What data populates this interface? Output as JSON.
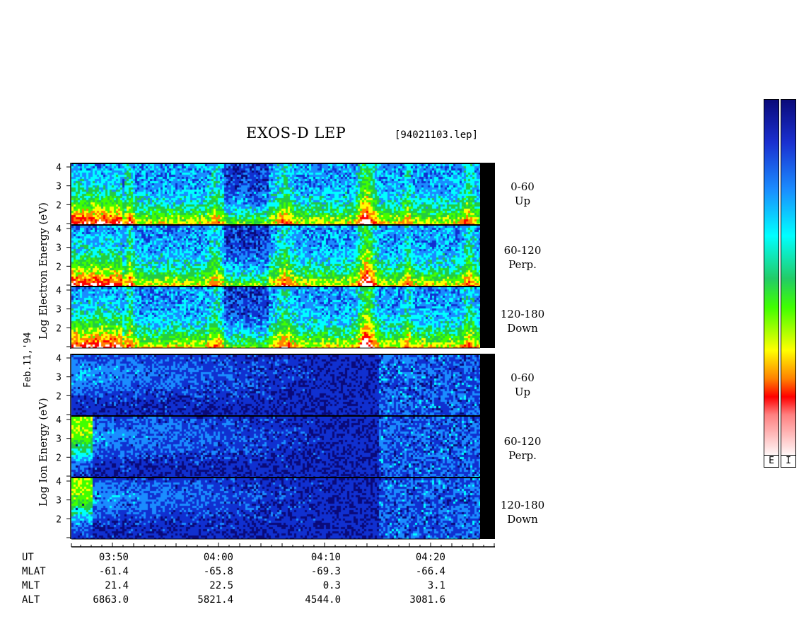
{
  "title": "EXOS-D LEP",
  "filename": "[94021103.lep]",
  "date_label": "Feb.11,'94",
  "electron_axis_label": "Log Electron Energy (eV)",
  "ion_axis_label": "Log Ion Energy (eV)",
  "pitch_labels": [
    {
      "range": "0-60",
      "name": "Up"
    },
    {
      "range": "60-120",
      "name": "Perp."
    },
    {
      "range": "120-180",
      "name": "Down"
    },
    {
      "range": "0-60",
      "name": "Up"
    },
    {
      "range": "60-120",
      "name": "Perp."
    },
    {
      "range": "120-180",
      "name": "Down"
    }
  ],
  "x_axis_rows": [
    {
      "label": "UT",
      "values": [
        "03:50",
        "04:00",
        "04:10",
        "04:20"
      ]
    },
    {
      "label": "MLAT",
      "values": [
        "-61.4",
        "-65.8",
        "-69.3",
        "-66.4"
      ]
    },
    {
      "label": "MLT",
      "values": [
        "21.4",
        "22.5",
        "0.3",
        "3.1"
      ]
    },
    {
      "label": "ALT",
      "values": [
        "6863.0",
        "5821.4",
        "4544.0",
        "3081.6"
      ]
    }
  ],
  "colorbar_labels": [
    "E",
    "I"
  ],
  "chart_data": {
    "type": "heatmap",
    "title": "EXOS-D LEP",
    "xlabel": "UT",
    "x_ticks": [
      "03:50",
      "04:00",
      "04:10",
      "04:20"
    ],
    "y_ticks": [
      "2",
      "3",
      "4"
    ],
    "panels": [
      {
        "species": "Electron",
        "pitch": "0-60",
        "direction": "Up"
      },
      {
        "species": "Electron",
        "pitch": "60-120",
        "direction": "Perp."
      },
      {
        "species": "Electron",
        "pitch": "120-180",
        "direction": "Down"
      },
      {
        "species": "Ion",
        "pitch": "0-60",
        "direction": "Up"
      },
      {
        "species": "Ion",
        "pitch": "60-120",
        "direction": "Perp."
      },
      {
        "species": "Ion",
        "pitch": "120-180",
        "direction": "Down"
      }
    ],
    "colormap": [
      "#0a0a7a",
      "#1030d0",
      "#1a8cff",
      "#00ffff",
      "#22cc44",
      "#40ff00",
      "#ffff00",
      "#ff8000",
      "#ff0000",
      "#ffffff"
    ]
  }
}
